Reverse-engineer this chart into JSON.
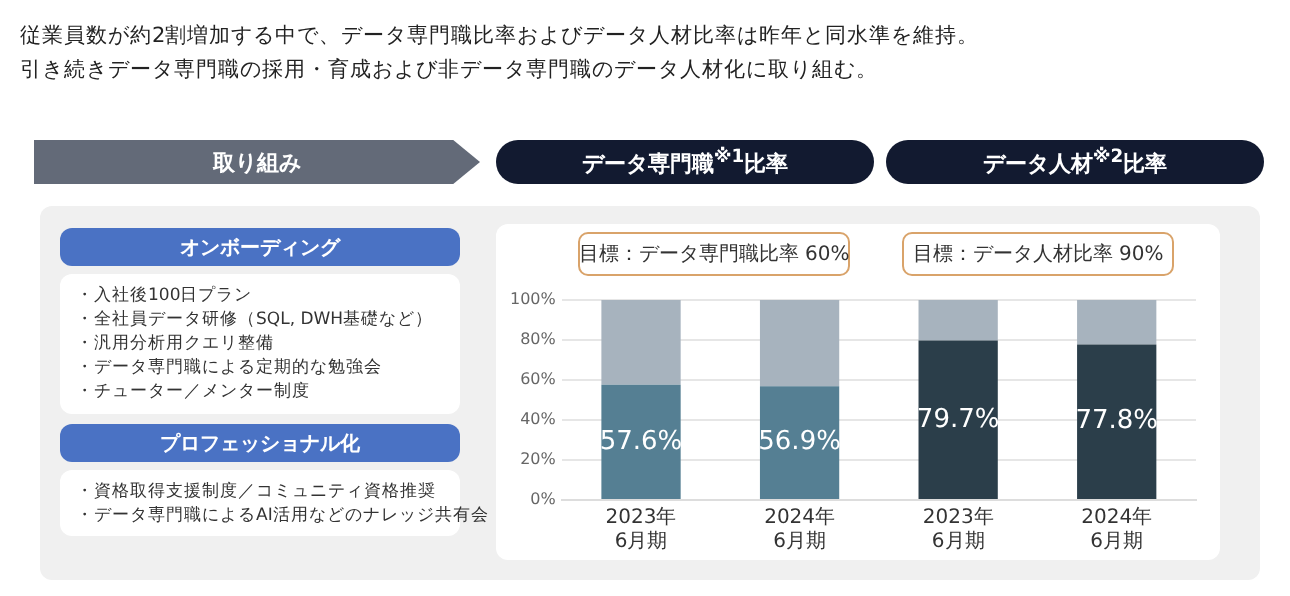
{
  "chart_data": [
    {
      "type": "other",
      "title": "従業員数が約2割増加する中で、データ専門職比率およびデータ人材比率は昨年と同水準を維持。",
      "subtitle": "引き続きデータ専門職の採用・育成および非データ専門職のデータ人材化に取り組む。",
      "annotations": [
        "取り組み",
        "オンボーディング",
        "・入社後100日プラン",
        "・全社員データ研修（SQL, DWH基礎など）",
        "・汎用分析用クエリ整備",
        "・データ専門職による定期的な勉強会",
        "・チューター／メンター制度",
        "プロフェッショナル化",
        "・資格取得支援制度／コミュニティ資格推奨",
        "・データ専門職によるAI活用などのナレッジ共有会"
      ]
    },
    {
      "type": "bar",
      "stacked": true,
      "categories": [
        "2023年\n6月期",
        "2024年\n6月期",
        "2023年\n6月期",
        "2024年\n6月期"
      ],
      "series": [
        {
          "colors": [
            "#557f93",
            "#557f93",
            "#2b3e4a",
            "#2b3e4a"
          ],
          "values": [
            57.6,
            56.9,
            79.7,
            77.8
          ],
          "value_labels": [
            "57.6%",
            "56.9%",
            "79.7%",
            "77.8%"
          ]
        },
        {
          "color": "#a7b3be",
          "values": [
            42.4,
            43.1,
            20.3,
            22.2
          ]
        }
      ],
      "ylim": [
        0,
        100
      ],
      "yticks": [
        {
          "value": 0,
          "label": "0%"
        },
        {
          "value": 20,
          "label": "20%"
        },
        {
          "value": 40,
          "label": "40%"
        },
        {
          "value": 60,
          "label": "60%"
        },
        {
          "value": 80,
          "label": "80%"
        },
        {
          "value": 100,
          "label": "100%"
        }
      ],
      "grid": "y",
      "legend": false,
      "annotations": [
        "データ専門職$^{※1}$比率",
        "データ人材$^{※2}$比率",
        "目標：データ専門職比率 60%",
        "目標：データ人材比率 90%"
      ]
    }
  ]
}
